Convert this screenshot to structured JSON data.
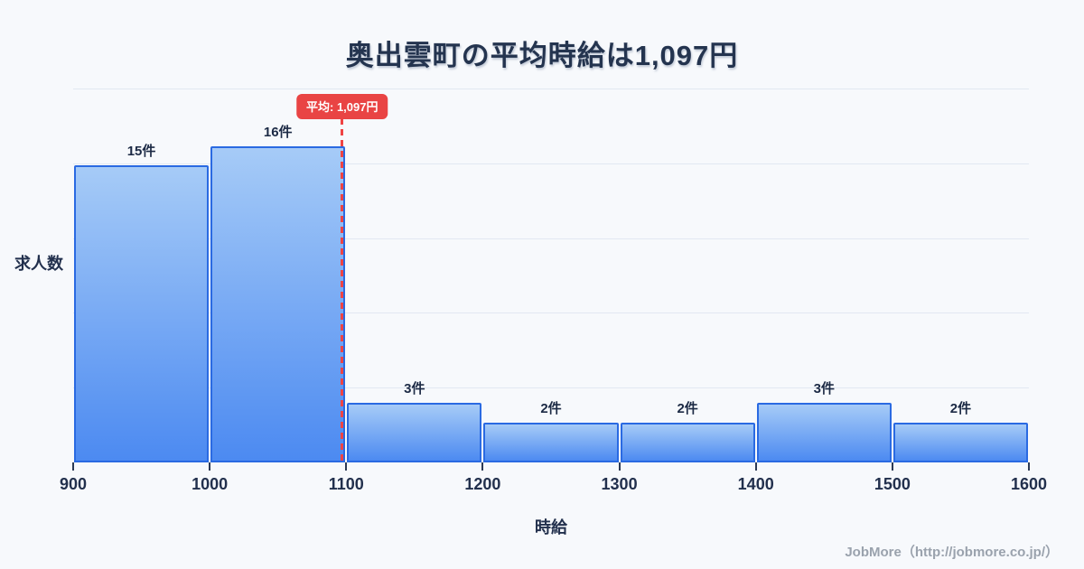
{
  "page": {
    "footer": "JobMore（http://jobmore.co.jp/）"
  },
  "chart_data": {
    "type": "bar",
    "title": "奥出雲町の平均時給は1,097円",
    "xlabel": "時給",
    "ylabel": "求人数",
    "bin_edges": [
      900,
      1000,
      1100,
      1200,
      1300,
      1400,
      1500,
      1600
    ],
    "categories": [
      "900-1000",
      "1000-1100",
      "1100-1200",
      "1200-1300",
      "1300-1400",
      "1400-1500",
      "1500-1600"
    ],
    "values": [
      15,
      16,
      3,
      2,
      2,
      3,
      2
    ],
    "bar_labels": [
      "15件",
      "16件",
      "3件",
      "2件",
      "2件",
      "3件",
      "2件"
    ],
    "x_tick_labels": [
      "900",
      "1000",
      "1100",
      "1200",
      "1300",
      "1400",
      "1500",
      "1600"
    ],
    "average": {
      "value": 1097,
      "label": "平均: 1,097円"
    },
    "xlim": [
      900,
      1600
    ],
    "ylim": [
      0,
      18.9
    ],
    "grid": true,
    "gridline_count": 5,
    "legend": "none",
    "colors": {
      "background": "#f7f9fc",
      "bar_fill_top": "#a6cbf7",
      "bar_fill_bottom": "#4c8af1",
      "bar_border": "#2a6ae2",
      "average_line": "#ef4444",
      "badge_background": "#e94444",
      "badge_text": "#ffffff",
      "title_text": "#24344f",
      "axis_text": "#22304d",
      "gridline": "#e2e8f2",
      "footer_text": "#9aa2ad"
    }
  }
}
